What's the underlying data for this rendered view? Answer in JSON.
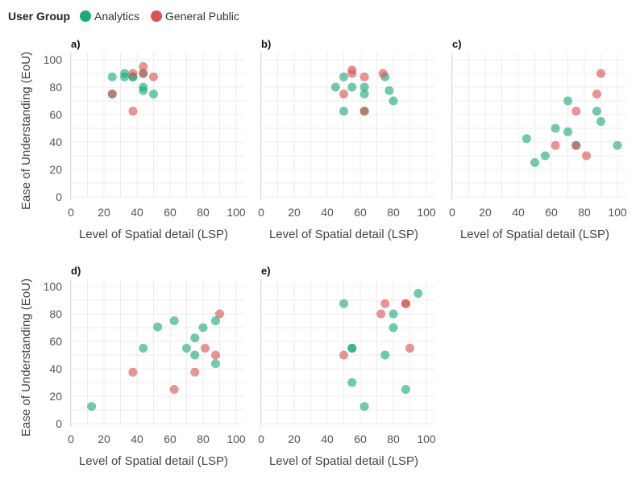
{
  "chart_data": {
    "type": "scatter",
    "legend": {
      "title": "User Group",
      "placement": "top-left",
      "entries": [
        {
          "name": "Analytics",
          "color": "#1aa97a"
        },
        {
          "name": "General Public",
          "color": "#d9534f"
        }
      ]
    },
    "xlabel": "Level of Spatial detail (LSP)",
    "ylabel": "Ease of Understanding (EoU)",
    "xlim": [
      0,
      100
    ],
    "ylim": [
      0,
      100
    ],
    "xticks": [
      0,
      20,
      40,
      60,
      80,
      100
    ],
    "yticks": [
      0,
      20,
      40,
      60,
      80,
      100
    ],
    "grid": true,
    "panels": [
      {
        "label": "a)",
        "series": [
          {
            "name": "Analytics",
            "points": [
              [
                25,
                87.5
              ],
              [
                32.5,
                87.5
              ],
              [
                32.5,
                90
              ],
              [
                37.5,
                87.5
              ],
              [
                37.5,
                87.5
              ],
              [
                43.75,
                80
              ],
              [
                43.75,
                77.5
              ],
              [
                50,
                75
              ],
              [
                43.75,
                90
              ],
              [
                25,
                75
              ]
            ]
          },
          {
            "name": "General Public",
            "points": [
              [
                37.5,
                90
              ],
              [
                43.75,
                95
              ],
              [
                43.75,
                90
              ],
              [
                50,
                87.5
              ],
              [
                37.5,
                62.5
              ],
              [
                25,
                75
              ]
            ]
          }
        ]
      },
      {
        "label": "b)",
        "series": [
          {
            "name": "Analytics",
            "points": [
              [
                45,
                80
              ],
              [
                50,
                87.5
              ],
              [
                50,
                62.5
              ],
              [
                55,
                80
              ],
              [
                62.5,
                80
              ],
              [
                62.5,
                75
              ],
              [
                75,
                87.5
              ],
              [
                77.5,
                77.5
              ],
              [
                80,
                70
              ],
              [
                62.5,
                62.5
              ]
            ]
          },
          {
            "name": "General Public",
            "points": [
              [
                50,
                75
              ],
              [
                55,
                92.5
              ],
              [
                55,
                90
              ],
              [
                62.5,
                87.5
              ],
              [
                73.75,
                90
              ],
              [
                62.5,
                62.5
              ]
            ]
          }
        ]
      },
      {
        "label": "c)",
        "series": [
          {
            "name": "Analytics",
            "points": [
              [
                45,
                42.5
              ],
              [
                50,
                25
              ],
              [
                56.25,
                30
              ],
              [
                62.5,
                50
              ],
              [
                70,
                70
              ],
              [
                70,
                47.5
              ],
              [
                87.5,
                62.5
              ],
              [
                90,
                55
              ],
              [
                100,
                37.5
              ],
              [
                75,
                37.5
              ]
            ]
          },
          {
            "name": "General Public",
            "points": [
              [
                62.5,
                37.5
              ],
              [
                75,
                62.5
              ],
              [
                75,
                37.5
              ],
              [
                81.25,
                30
              ],
              [
                87.5,
                75
              ],
              [
                90,
                90
              ]
            ]
          }
        ]
      },
      {
        "label": "d)",
        "series": [
          {
            "name": "Analytics",
            "points": [
              [
                12.5,
                12.5
              ],
              [
                43.75,
                55
              ],
              [
                52.5,
                70.5
              ],
              [
                62.5,
                75
              ],
              [
                70,
                55
              ],
              [
                75,
                62.5
              ],
              [
                75,
                50
              ],
              [
                80,
                70
              ],
              [
                87.5,
                75
              ],
              [
                87.5,
                43.75
              ]
            ]
          },
          {
            "name": "General Public",
            "points": [
              [
                37.5,
                37.5
              ],
              [
                62.5,
                25
              ],
              [
                75,
                37.5
              ],
              [
                81.25,
                55
              ],
              [
                87.5,
                50
              ],
              [
                90,
                80
              ]
            ]
          }
        ]
      },
      {
        "label": "e)",
        "series": [
          {
            "name": "Analytics",
            "points": [
              [
                50,
                87.5
              ],
              [
                55,
                55
              ],
              [
                55,
                55
              ],
              [
                55,
                30
              ],
              [
                62.5,
                12.5
              ],
              [
                75,
                50
              ],
              [
                80,
                80
              ],
              [
                80,
                70
              ],
              [
                87.5,
                25
              ],
              [
                95,
                95
              ]
            ]
          },
          {
            "name": "General Public",
            "points": [
              [
                50,
                50
              ],
              [
                72.5,
                80
              ],
              [
                75,
                87.5
              ],
              [
                87.5,
                87.5
              ],
              [
                87.5,
                87.5
              ],
              [
                90,
                55
              ]
            ]
          }
        ]
      }
    ]
  }
}
